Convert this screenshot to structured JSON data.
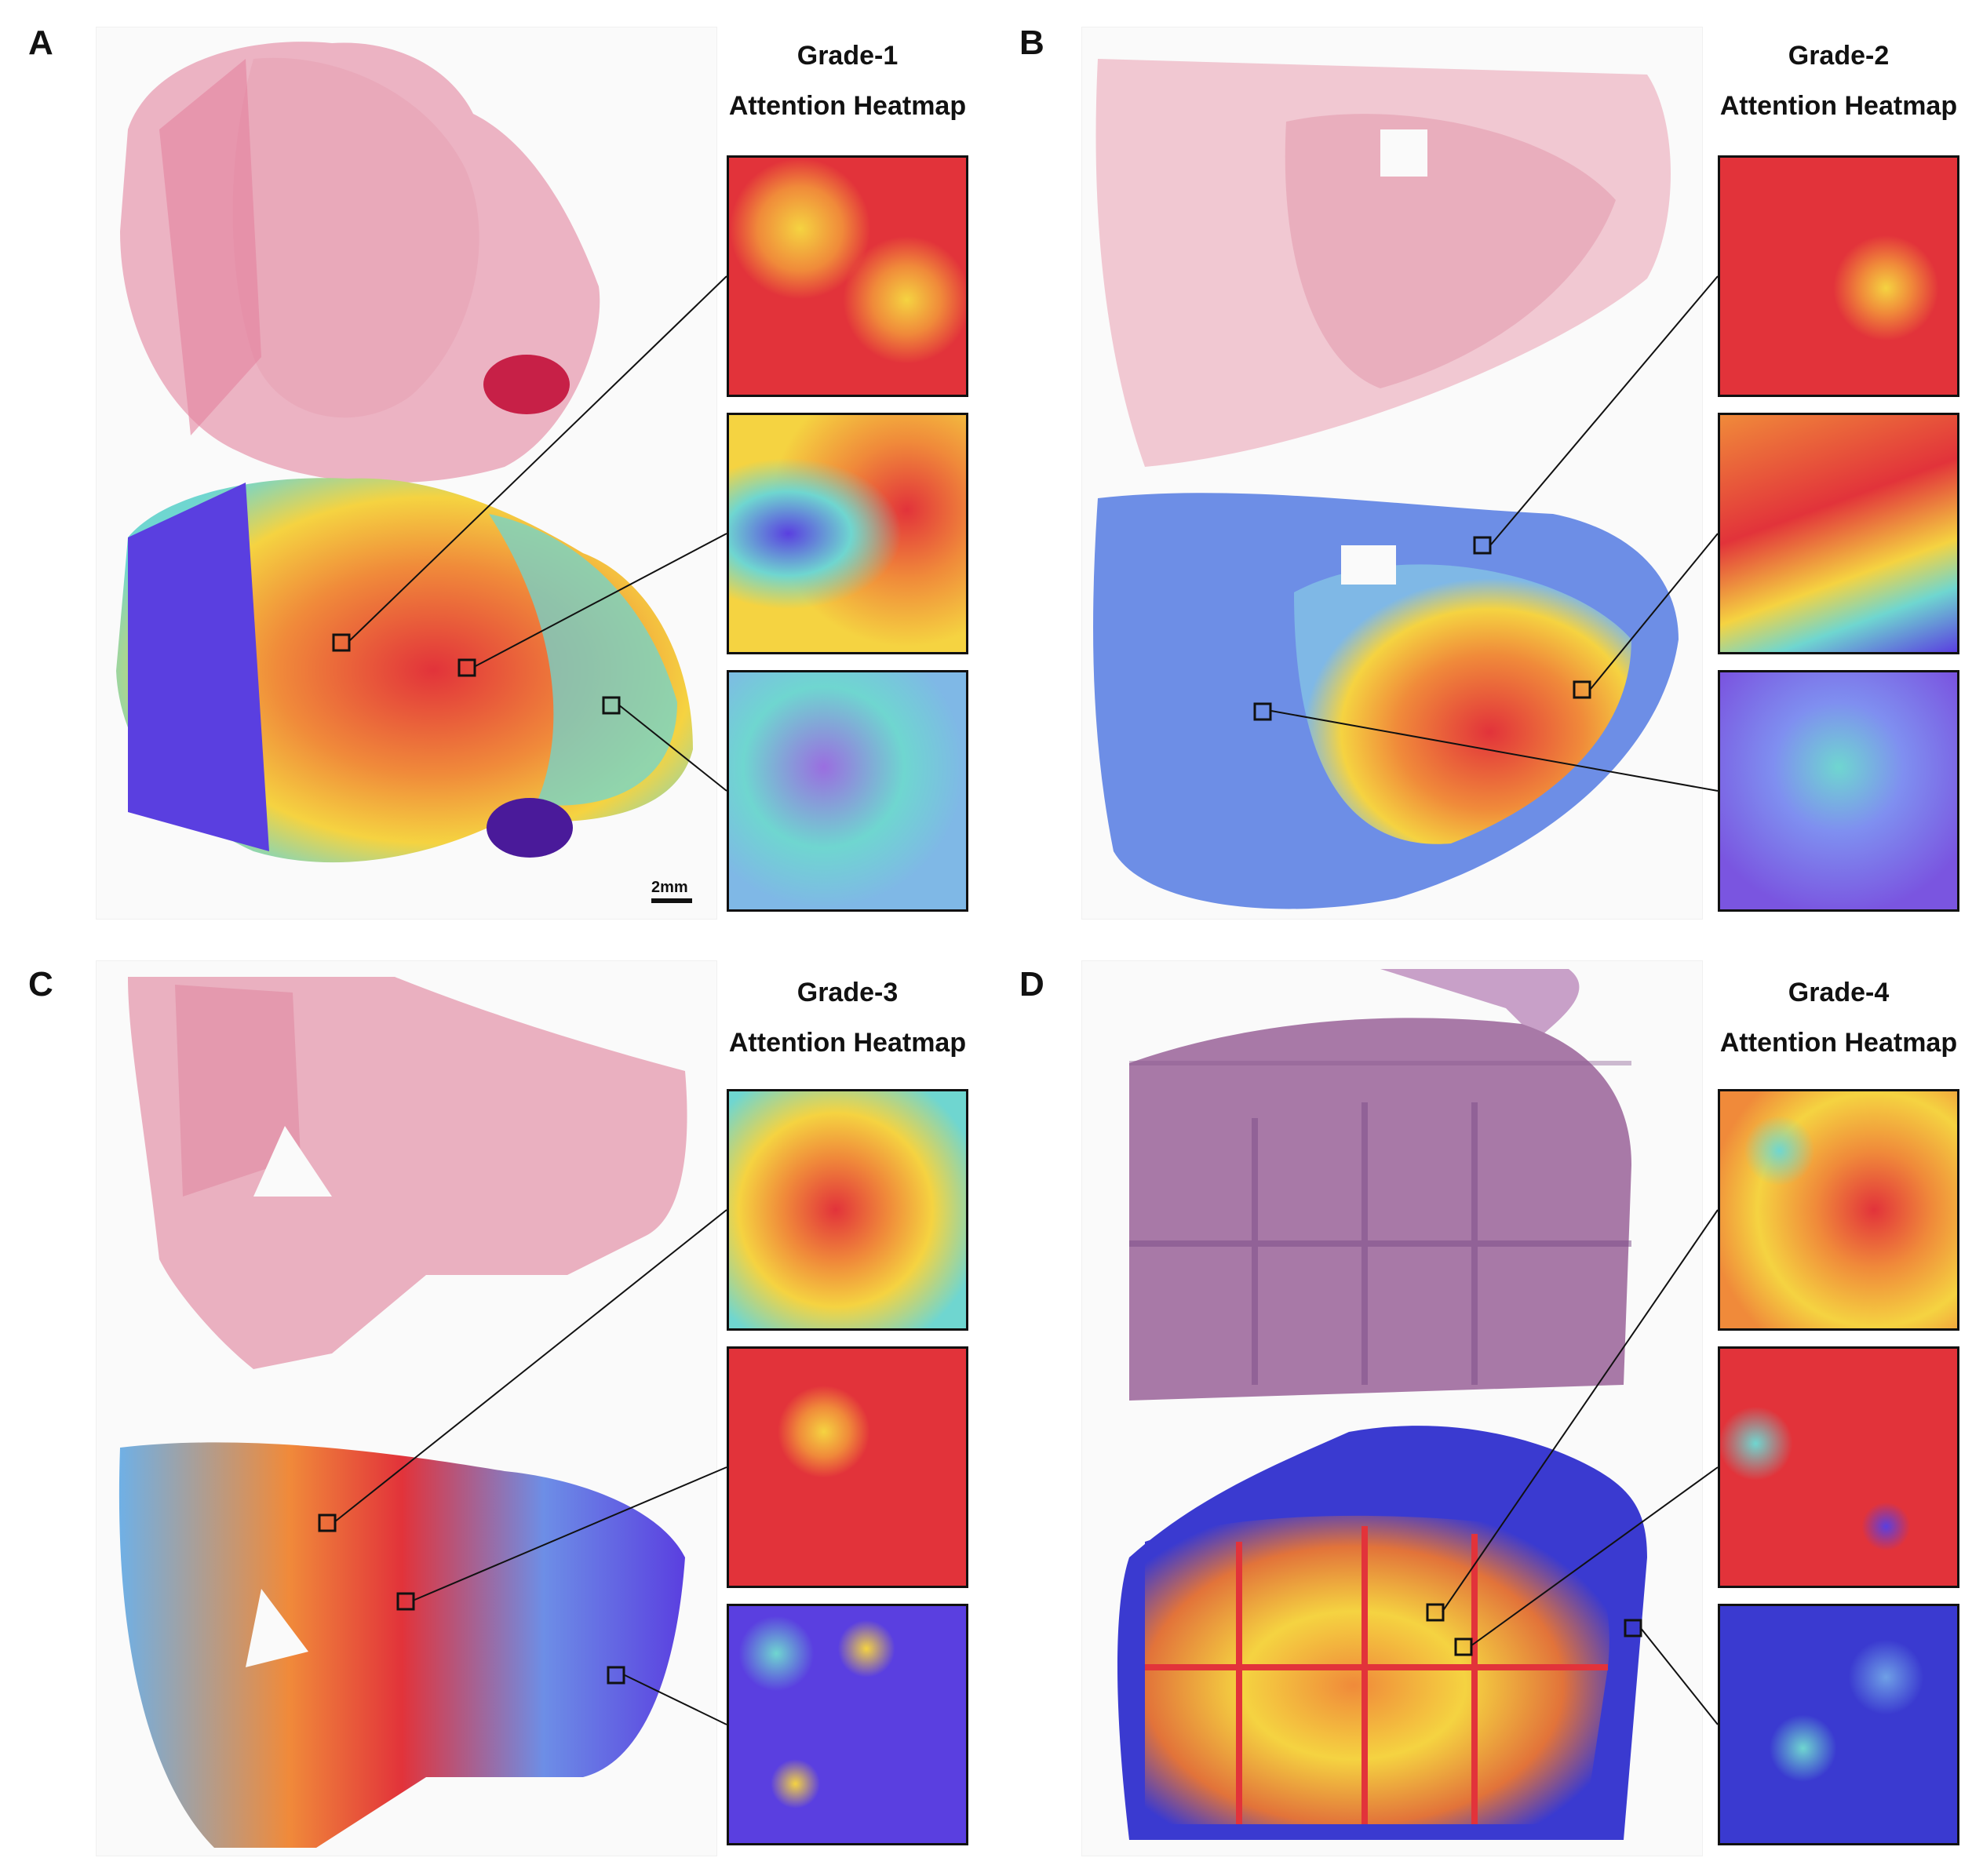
{
  "panels": [
    {
      "letter": "A",
      "grade": "Grade-1",
      "subtitle": "Attention Heatmap",
      "insets": [
        "high-attention",
        "mixed-attention",
        "low-attention"
      ]
    },
    {
      "letter": "B",
      "grade": "Grade-2",
      "subtitle": "Attention Heatmap",
      "insets": [
        "high-attention",
        "mixed-attention",
        "low-attention"
      ]
    },
    {
      "letter": "C",
      "grade": "Grade-3",
      "subtitle": "Attention Heatmap",
      "insets": [
        "high-attention",
        "high-attention",
        "low-attention"
      ]
    },
    {
      "letter": "D",
      "grade": "Grade-4",
      "subtitle": "Attention Heatmap",
      "insets": [
        "high-attention",
        "high-attention",
        "low-attention"
      ]
    }
  ],
  "scale_bar": {
    "label": "2mm"
  },
  "colors": {
    "he_pink": "#e9a6b8",
    "he_purple": "#a879a7",
    "heat_high": "#e2333a",
    "heat_mid": "#f5d341",
    "heat_low": "#5a3fe0",
    "heat_cyan": "#6fd6d0"
  }
}
